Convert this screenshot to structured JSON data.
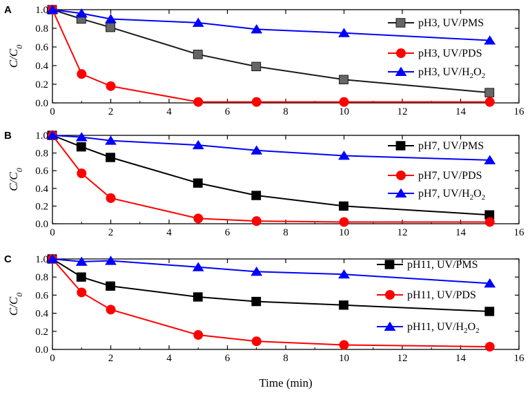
{
  "chart_data": [
    {
      "type": "line",
      "panel_label": "A",
      "ylabel": "C/C0",
      "xlabel": "",
      "xlim": [
        0,
        16
      ],
      "ylim": [
        0,
        1.0
      ],
      "x_ticks": [
        "0",
        "2",
        "4",
        "6",
        "8",
        "10",
        "12",
        "14",
        "16"
      ],
      "y_ticks": [
        "0.0",
        "0.2",
        "0.4",
        "0.6",
        "0.8",
        "1.0"
      ],
      "legend_position": "right",
      "x": [
        0,
        1,
        2,
        5,
        7,
        10,
        15
      ],
      "series": [
        {
          "name": "pH3, UV/PMS",
          "legend_main": "pH3, UV/PMS",
          "marker": "square",
          "color": "#1a1a1a",
          "marker_color": "#666666",
          "values": [
            1.0,
            0.9,
            0.81,
            0.52,
            0.39,
            0.25,
            0.11
          ]
        },
        {
          "name": "pH3, UV/PDS",
          "legend_main": "pH3, UV/PDS",
          "marker": "circle",
          "color": "#ff0000",
          "values": [
            1.0,
            0.31,
            0.18,
            0.01,
            0.01,
            0.01,
            0.01
          ]
        },
        {
          "name": "pH3, UV/H2O2",
          "legend_main": "pH3, UV/H",
          "legend_sub1": "2",
          "legend_mid": "O",
          "legend_sub2": "2",
          "marker": "triangle",
          "color": "#0000ff",
          "values": [
            1.0,
            0.96,
            0.9,
            0.86,
            0.79,
            0.75,
            0.67
          ]
        }
      ]
    },
    {
      "type": "line",
      "panel_label": "B",
      "ylabel": "C/C0",
      "xlabel": "",
      "xlim": [
        0,
        16
      ],
      "ylim": [
        0,
        1.0
      ],
      "x_ticks": [
        "0",
        "2",
        "4",
        "6",
        "8",
        "10",
        "12",
        "14",
        "16"
      ],
      "y_ticks": [
        "0.0",
        "0.2",
        "0.4",
        "0.6",
        "0.8",
        "1.0"
      ],
      "legend_position": "right",
      "x": [
        0,
        1,
        2,
        5,
        7,
        10,
        15
      ],
      "series": [
        {
          "name": "pH7, UV/PMS",
          "legend_main": "pH7, UV/PMS",
          "marker": "square",
          "color": "#000000",
          "marker_color": "#000000",
          "values": [
            1.0,
            0.87,
            0.75,
            0.46,
            0.32,
            0.2,
            0.1
          ]
        },
        {
          "name": "pH7, UV/PDS",
          "legend_main": "pH7, UV/PDS",
          "marker": "circle",
          "color": "#ff0000",
          "values": [
            1.0,
            0.57,
            0.29,
            0.06,
            0.03,
            0.02,
            0.02
          ]
        },
        {
          "name": "pH7, UV/H2O2",
          "legend_main": "pH7, UV/H",
          "legend_sub1": "2",
          "legend_mid": "O",
          "legend_sub2": "2",
          "marker": "triangle",
          "color": "#0000ff",
          "values": [
            1.0,
            0.98,
            0.94,
            0.89,
            0.83,
            0.77,
            0.72
          ]
        }
      ]
    },
    {
      "type": "line",
      "panel_label": "C",
      "ylabel": "C/C0",
      "xlabel": "Time (min)",
      "xlim": [
        0,
        16
      ],
      "ylim": [
        0,
        1.0
      ],
      "x_ticks": [
        "0",
        "2",
        "4",
        "6",
        "8",
        "10",
        "12",
        "14",
        "16"
      ],
      "y_ticks": [
        "0.0",
        "0.2",
        "0.4",
        "0.6",
        "0.8",
        "1.0"
      ],
      "legend_position": "right",
      "x": [
        0,
        1,
        2,
        5,
        7,
        10,
        15
      ],
      "series": [
        {
          "name": "pH11, UV/PMS",
          "legend_main": "pH11, UV/PMS",
          "marker": "square",
          "color": "#000000",
          "marker_color": "#000000",
          "values": [
            1.0,
            0.8,
            0.7,
            0.58,
            0.53,
            0.49,
            0.42
          ]
        },
        {
          "name": "pH11, UV/PDS",
          "legend_main": "pH11, UV/PDS",
          "marker": "circle",
          "color": "#ff0000",
          "values": [
            1.0,
            0.63,
            0.44,
            0.16,
            0.09,
            0.05,
            0.03
          ]
        },
        {
          "name": "pH11, UV/H2O2",
          "legend_main": "pH11, UV/H",
          "legend_sub1": "2",
          "legend_mid": "O",
          "legend_sub2": "2",
          "marker": "triangle",
          "color": "#0000ff",
          "values": [
            1.0,
            0.97,
            0.98,
            0.91,
            0.86,
            0.83,
            0.73
          ]
        }
      ]
    }
  ]
}
